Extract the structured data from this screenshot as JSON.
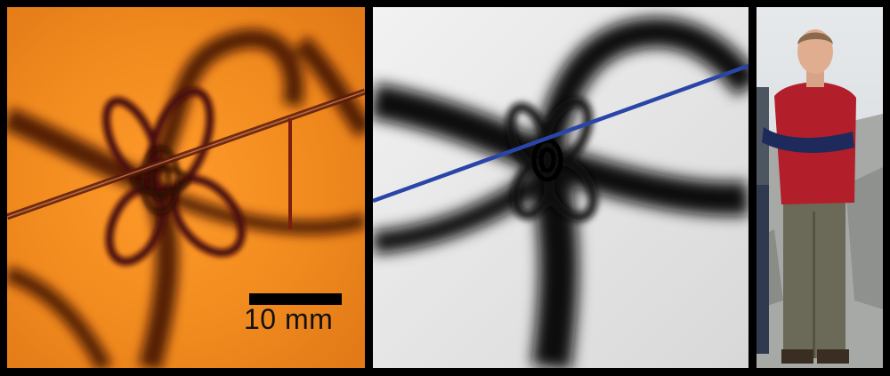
{
  "panels": {
    "photoelastic": {
      "scale_bar": {
        "label": "10 mm"
      }
    },
    "simulation": {},
    "portrait": {}
  },
  "colors": {
    "photo_bg": "#f08a1e",
    "photo_fringe": "#3a0b06",
    "sim_light": "#f0f0f0",
    "sim_dark": "#0a0a0a",
    "crack_line": "#2a45a8",
    "shirt": "#b21f2a",
    "sky": "#dfe3e7"
  }
}
